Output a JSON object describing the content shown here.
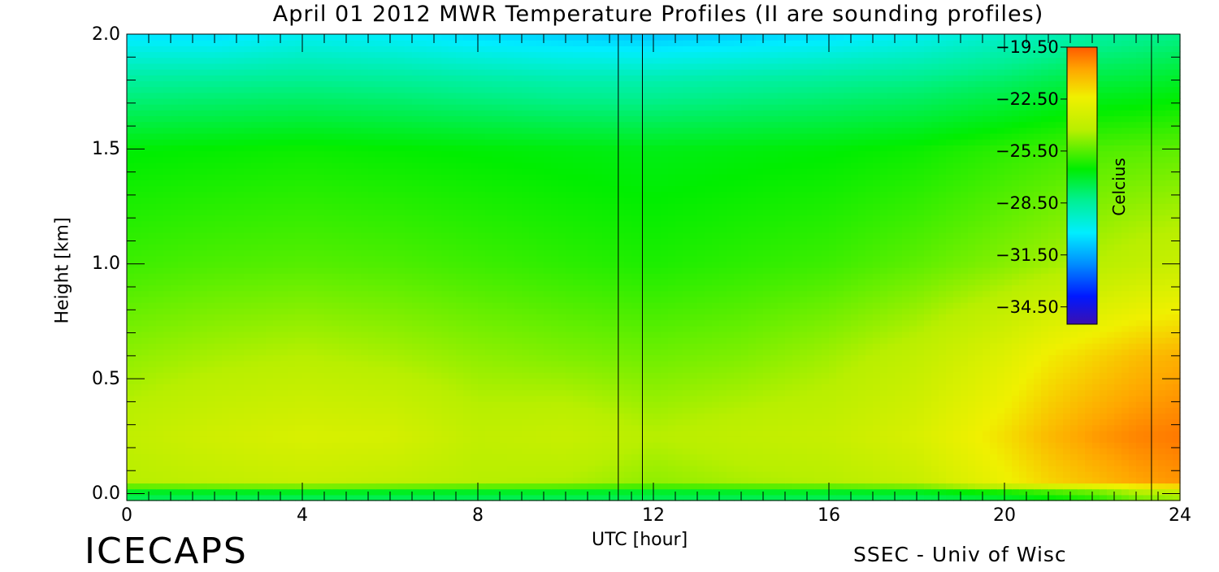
{
  "chart_data": {
    "type": "heatmap",
    "title": "April 01 2012 MWR Temperature Profiles (II are sounding profiles)",
    "xlabel": "UTC [hour]",
    "ylabel": "Height [km]",
    "xlim": [
      0,
      24
    ],
    "ylim": [
      -0.03,
      2.0
    ],
    "x_ticks": [
      "0",
      "4",
      "8",
      "12",
      "16",
      "20",
      "24"
    ],
    "y_ticks": [
      "0.0",
      "0.5",
      "1.0",
      "1.5",
      "2.0"
    ],
    "x_tick_values": [
      0,
      4,
      8,
      12,
      16,
      20,
      24
    ],
    "y_tick_values": [
      0.0,
      0.5,
      1.0,
      1.5,
      2.0
    ],
    "colorbar": {
      "label": "Celcius",
      "range": [
        -35.5,
        -19.5
      ],
      "tick_labels": [
        "-19.50",
        "-22.50",
        "-25.50",
        "-28.50",
        "-31.50",
        "-34.50"
      ],
      "tick_values": [
        -19.5,
        -22.5,
        -25.5,
        -28.5,
        -31.5,
        -34.5
      ]
    },
    "sounding_times_utc": [
      11.2,
      11.75,
      23.35
    ],
    "heights_km": [
      0.0,
      0.05,
      0.25,
      0.6,
      1.0,
      1.5,
      1.8,
      2.0
    ],
    "times_utc": [
      0,
      2,
      4,
      6,
      8,
      10,
      12,
      14,
      16,
      18,
      20,
      21,
      22,
      23,
      24
    ],
    "temperature_c": [
      [
        -27.5,
        -27.5,
        -27.5,
        -27.5,
        -27.5,
        -27.5,
        -27.5,
        -27.5,
        -27.5,
        -27.5,
        -27.0,
        -26.5,
        -26.0,
        -25.0,
        -24.5
      ],
      [
        -24.3,
        -24.0,
        -23.8,
        -24.0,
        -24.3,
        -24.4,
        -24.8,
        -24.5,
        -24.3,
        -23.8,
        -22.5,
        -21.8,
        -21.3,
        -20.8,
        -20.5
      ],
      [
        -24.0,
        -23.5,
        -23.2,
        -23.3,
        -24.0,
        -23.8,
        -24.3,
        -24.0,
        -23.8,
        -23.2,
        -22.0,
        -21.2,
        -20.6,
        -20.2,
        -20.0
      ],
      [
        -24.8,
        -24.5,
        -24.3,
        -24.5,
        -24.8,
        -25.0,
        -25.2,
        -25.0,
        -24.6,
        -24.0,
        -23.0,
        -22.3,
        -21.8,
        -21.3,
        -21.0
      ],
      [
        -25.8,
        -25.6,
        -25.5,
        -25.6,
        -25.8,
        -26.0,
        -26.2,
        -26.0,
        -25.8,
        -25.4,
        -24.9,
        -24.6,
        -24.3,
        -24.0,
        -23.8
      ],
      [
        -26.6,
        -26.5,
        -26.4,
        -26.5,
        -26.6,
        -26.7,
        -26.8,
        -26.7,
        -26.6,
        -26.4,
        -26.0,
        -25.8,
        -25.6,
        -25.5,
        -25.4
      ],
      [
        -28.5,
        -28.4,
        -28.3,
        -28.4,
        -28.6,
        -28.8,
        -28.8,
        -28.6,
        -28.4,
        -28.2,
        -27.8,
        -27.5,
        -27.3,
        -27.2,
        -27.0
      ],
      [
        -30.4,
        -30.5,
        -30.0,
        -30.2,
        -30.6,
        -30.8,
        -31.0,
        -30.8,
        -30.5,
        -30.0,
        -29.3,
        -29.0,
        -28.6,
        -28.4,
        -28.2
      ]
    ]
  }
}
